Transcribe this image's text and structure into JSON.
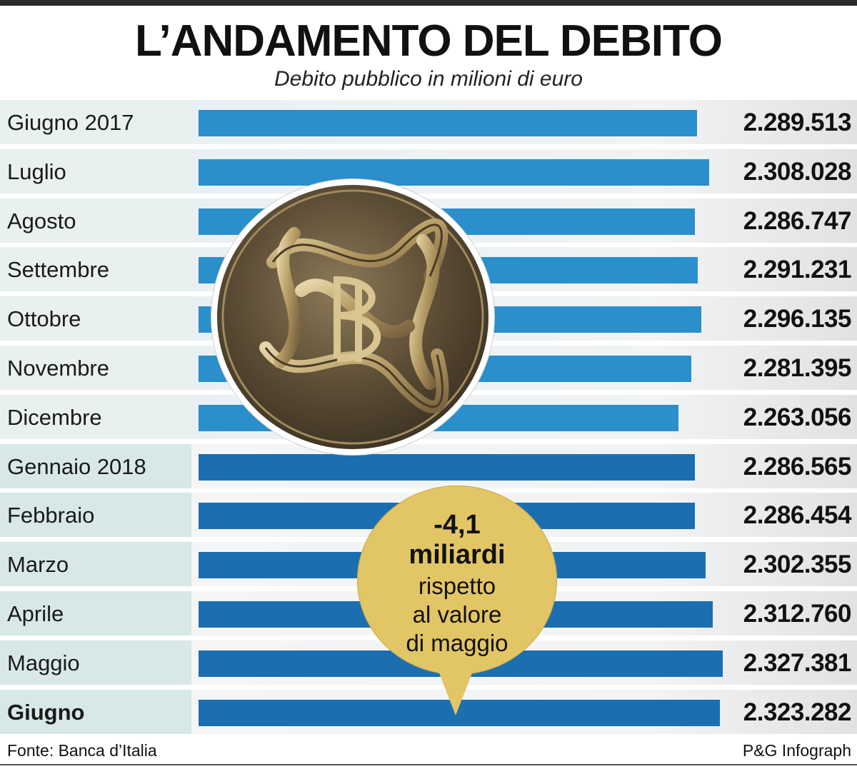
{
  "header": {
    "title": "L’ANDAMENTO DEL DEBITO",
    "subtitle": "Debito pubblico in milioni di euro"
  },
  "colors": {
    "bar_2017": "#2a8fcb",
    "bar_2018": "#1b6fb0",
    "label_bg_2017": "#e8f1ee",
    "label_bg_2018": "#d7e8e7",
    "bar_bg_2017": "#e9f0f4",
    "value_bg": "#e2e2e2",
    "bubble": "#e2c564"
  },
  "chart_data": {
    "type": "bar",
    "orientation": "horizontal",
    "categories": [
      "Giugno 2017",
      "Luglio",
      "Agosto",
      "Settembre",
      "Ottobre",
      "Novembre",
      "Dicembre",
      "Gennaio 2018",
      "Febbraio",
      "Marzo",
      "Aprile",
      "Maggio",
      "Giugno"
    ],
    "values": [
      2289513,
      2308028,
      2286747,
      2291231,
      2296135,
      2281395,
      2263056,
      2286565,
      2286454,
      2302355,
      2312760,
      2327381,
      2323282
    ],
    "value_labels": [
      "2.289.513",
      "2.308.028",
      "2.286.747",
      "2.291.231",
      "2.296.135",
      "2.281.395",
      "2.263.056",
      "2.286.565",
      "2.286.454",
      "2.302.355",
      "2.312.760",
      "2.327.381",
      "2.323.282"
    ],
    "year_group": [
      2017,
      2017,
      2017,
      2017,
      2017,
      2017,
      2017,
      2018,
      2018,
      2018,
      2018,
      2018,
      2018
    ],
    "highlight_index": 12,
    "title": "L’ANDAMENTO DEL DEBITO",
    "subtitle": "Debito pubblico in milioni di euro",
    "xlabel": "",
    "ylabel": "",
    "grid": false
  },
  "callout": {
    "value": "-4,1",
    "unit": "miliardi",
    "lines": [
      "rispetto",
      "al valore",
      "di maggio"
    ]
  },
  "footer": {
    "source": "Fonte: Banca d’Italia",
    "credit": "P&G Infograph"
  },
  "emblem": {
    "description_icon": "banca-d-italia-seal-icon"
  }
}
